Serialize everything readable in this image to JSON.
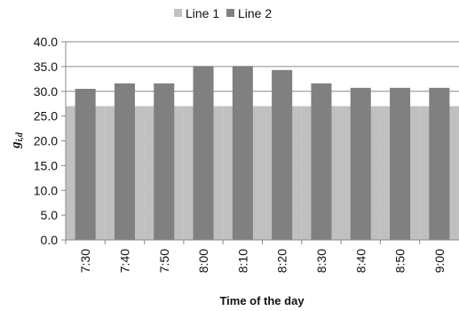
{
  "chart_data": {
    "type": "bar",
    "title": "",
    "xlabel": "Time of the day",
    "ylabel_main": "g",
    "ylabel_sub": "i,d",
    "ylim": [
      0,
      40
    ],
    "yticks": [
      "0.0",
      "5.0",
      "10.0",
      "15.0",
      "20.0",
      "25.0",
      "30.0",
      "35.0",
      "40.0"
    ],
    "grid": "horizontal",
    "legend_position": "top",
    "categories": [
      "7:30",
      "7:40",
      "7:50",
      "8:00",
      "8:10",
      "8:20",
      "8:30",
      "8:40",
      "8:50",
      "9:00"
    ],
    "series": [
      {
        "name": "Line 1",
        "color": "#c0c0c0",
        "values": [
          27.0,
          27.0,
          27.0,
          27.0,
          27.0,
          27.0,
          27.0,
          27.0,
          27.0,
          27.0
        ]
      },
      {
        "name": "Line 2",
        "color": "#808080",
        "values": [
          30.5,
          31.6,
          31.6,
          35.1,
          35.1,
          34.3,
          31.6,
          30.7,
          30.7,
          30.7
        ]
      }
    ]
  }
}
